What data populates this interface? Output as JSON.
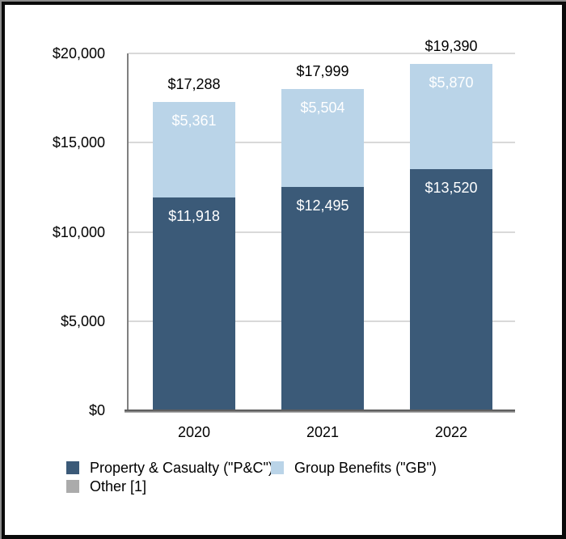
{
  "chart_data": {
    "type": "bar",
    "stacked": true,
    "title": "",
    "categories": [
      "2020",
      "2021",
      "2022"
    ],
    "series": [
      {
        "name": "Property & Casualty (\"P&C\")",
        "values": [
          11918,
          12495,
          13520
        ],
        "labels": [
          "$11,918",
          "$12,495",
          "$13,520"
        ],
        "color": "#3B5A78",
        "label_color": "#FFFFFF"
      },
      {
        "name": "Group Benefits (\"GB\")",
        "values": [
          5361,
          5504,
          5870
        ],
        "labels": [
          "$5,361",
          "$5,504",
          "$5,870"
        ],
        "color": "#BAD4E8",
        "label_color": "#FFFFFF"
      },
      {
        "name": "Other [1]",
        "color": "#ABABAB"
      }
    ],
    "totals": {
      "values": [
        17288,
        17999,
        19390
      ],
      "labels": [
        "$17,288",
        "$17,999",
        "$19,390"
      ]
    },
    "y_axis": {
      "min": 0,
      "max": 20000,
      "ticks": [
        {
          "value": 0,
          "label": "$0"
        },
        {
          "value": 5000,
          "label": "$5,000"
        },
        {
          "value": 10000,
          "label": "$10,000"
        },
        {
          "value": 15000,
          "label": "$15,000"
        },
        {
          "value": 20000,
          "label": "$20,000"
        }
      ]
    },
    "grid": true,
    "legend_position": "bottom-left"
  },
  "colors": {
    "background": "#FFFFFF",
    "gridline": "#D9D9D9",
    "y_axis_line": "#808080",
    "x_axis_line_top": "#5F5F5F",
    "x_axis_line_bottom": "#A8A8A8",
    "tick_text": "#000000",
    "total_text": "#000000",
    "frame": "#0A0A0A"
  }
}
